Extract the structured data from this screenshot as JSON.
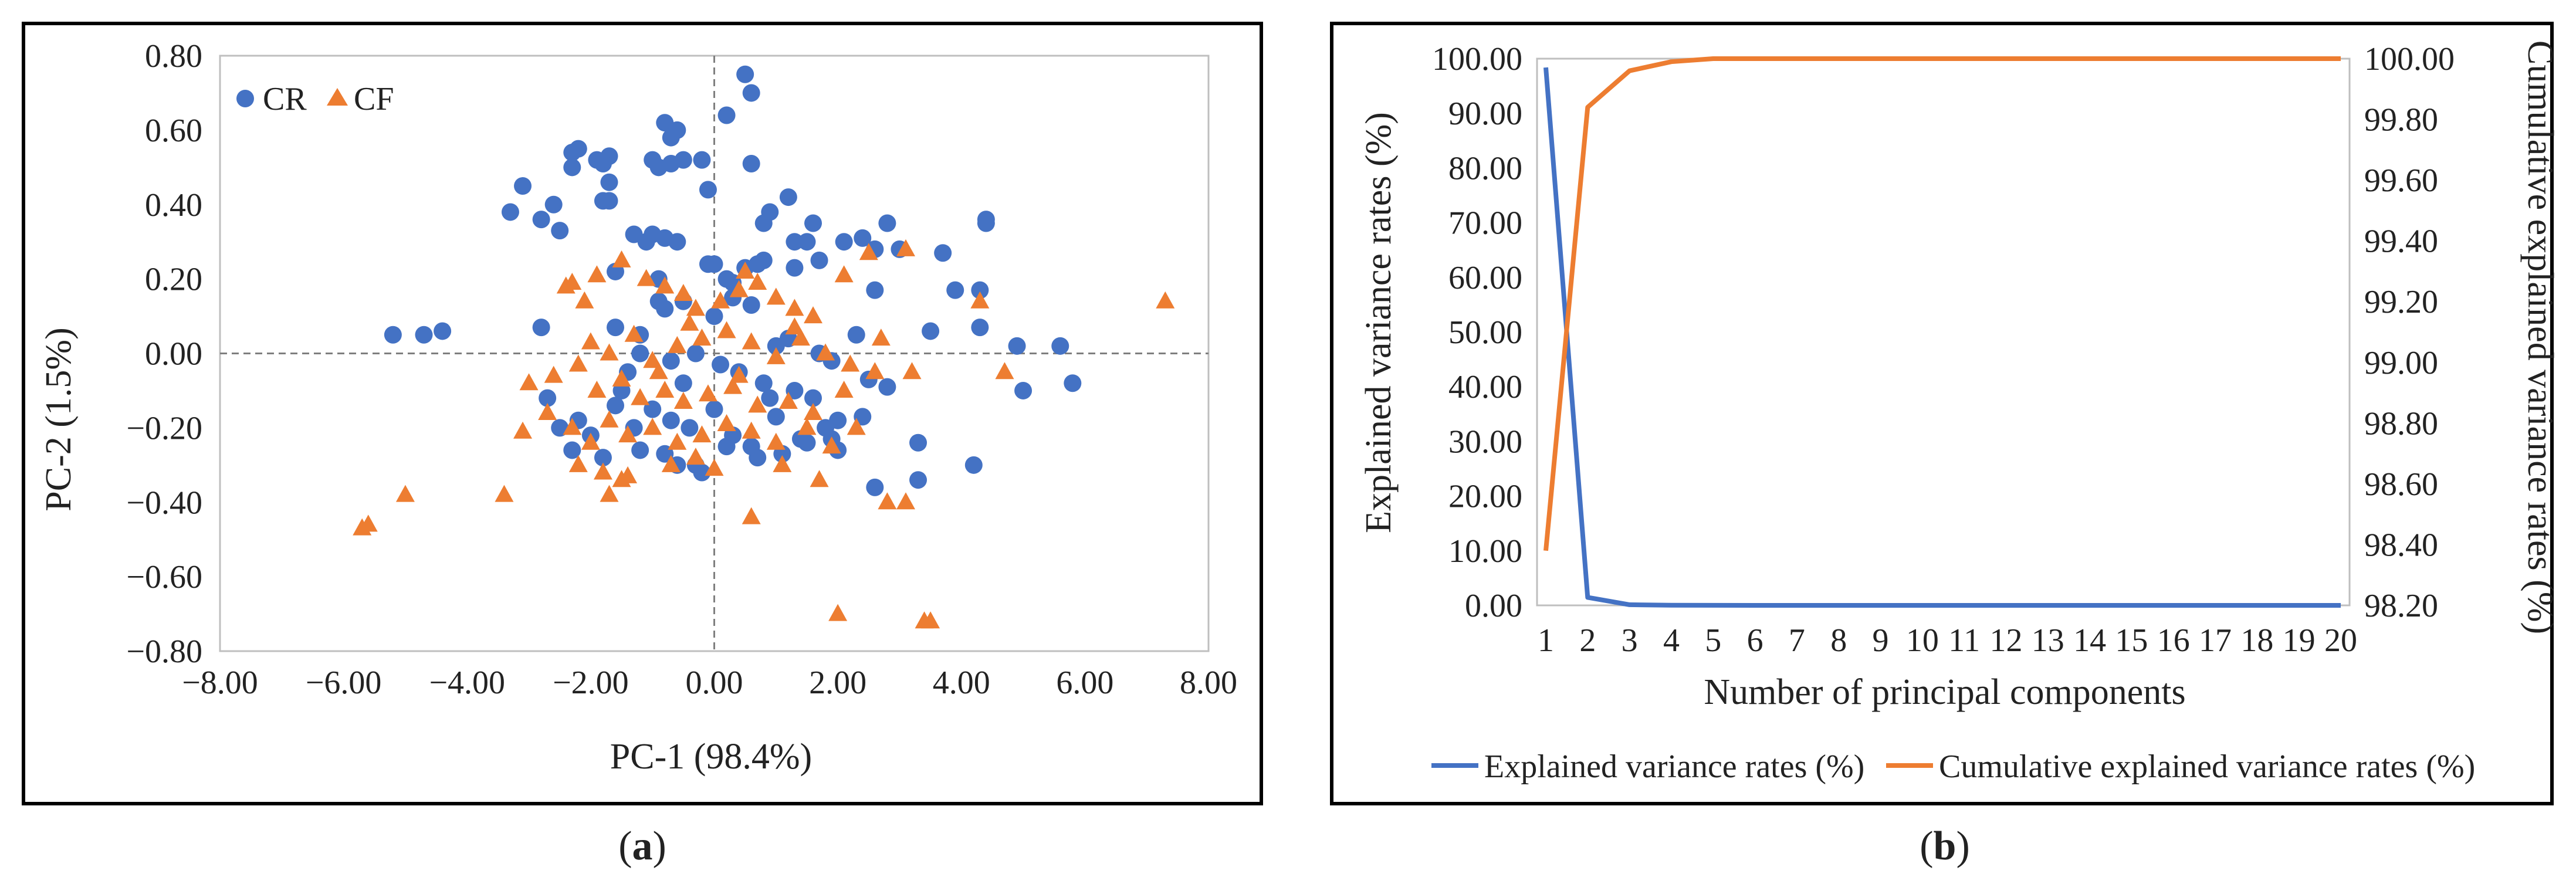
{
  "colors": {
    "cr": "#4472C4",
    "cf": "#ED7D31",
    "explained": "#4472C4",
    "cumulative": "#ED7D31",
    "frame": "#000000",
    "grid": "#d9d9d9",
    "zero_line": "#7f7f7f"
  },
  "panel_a": {
    "sub_label": "a",
    "sub_label_open": "(",
    "sub_label_close": ")"
  },
  "panel_b": {
    "sub_label": "b",
    "sub_label_open": "(",
    "sub_label_close": ")"
  },
  "chart_data": [
    {
      "type": "scatter",
      "panel": "a",
      "title": "",
      "xlabel": "PC-1 (98.4%)",
      "ylabel": "PC-2 (1.5%)",
      "xlim": [
        -8,
        8
      ],
      "ylim": [
        -0.8,
        0.8
      ],
      "xticks": [
        -8,
        -6,
        -4,
        -2,
        0,
        2,
        4,
        6,
        8
      ],
      "yticks": [
        -0.8,
        -0.6,
        -0.4,
        -0.2,
        0,
        0.2,
        0.4,
        0.6,
        0.8
      ],
      "xtick_labels": [
        "−8.00",
        "−6.00",
        "−4.00",
        "−2.00",
        "0.00",
        "2.00",
        "4.00",
        "6.00",
        "8.00"
      ],
      "ytick_labels": [
        "−0.80",
        "−0.60",
        "−0.40",
        "−0.20",
        "0.00",
        "0.20",
        "0.40",
        "0.60",
        "0.80"
      ],
      "legend_position": "top-left",
      "series": [
        {
          "name": "CR",
          "marker": "circle",
          "points": [
            [
              0.5,
              0.75
            ],
            [
              0.6,
              0.7
            ],
            [
              0.2,
              0.64
            ],
            [
              -0.8,
              0.62
            ],
            [
              -0.6,
              0.6
            ],
            [
              -0.7,
              0.58
            ],
            [
              -2.3,
              0.54
            ],
            [
              -2.2,
              0.55
            ],
            [
              -2.3,
              0.5
            ],
            [
              -1.9,
              0.52
            ],
            [
              -1.7,
              0.53
            ],
            [
              -1.0,
              0.52
            ],
            [
              -0.7,
              0.51
            ],
            [
              -0.5,
              0.52
            ],
            [
              -0.2,
              0.52
            ],
            [
              -1.8,
              0.51
            ],
            [
              -1.8,
              0.41
            ],
            [
              -0.9,
              0.5
            ],
            [
              0.6,
              0.51
            ],
            [
              -3.1,
              0.45
            ],
            [
              -3.3,
              0.38
            ],
            [
              -2.6,
              0.4
            ],
            [
              -2.8,
              0.36
            ],
            [
              -1.7,
              0.46
            ],
            [
              -1.7,
              0.41
            ],
            [
              -0.1,
              0.44
            ],
            [
              1.2,
              0.42
            ],
            [
              0.9,
              0.38
            ],
            [
              -2.5,
              0.33
            ],
            [
              -1.3,
              0.32
            ],
            [
              -1.1,
              0.3
            ],
            [
              -1.0,
              0.32
            ],
            [
              -0.8,
              0.31
            ],
            [
              -0.6,
              0.3
            ],
            [
              0.8,
              0.35
            ],
            [
              1.6,
              0.35
            ],
            [
              2.1,
              0.3
            ],
            [
              2.4,
              0.31
            ],
            [
              2.8,
              0.35
            ],
            [
              2.6,
              0.28
            ],
            [
              3.0,
              0.28
            ],
            [
              3.7,
              0.27
            ],
            [
              4.4,
              0.36
            ],
            [
              4.4,
              0.35
            ],
            [
              1.3,
              0.3
            ],
            [
              1.5,
              0.3
            ],
            [
              -0.1,
              0.24
            ],
            [
              0.0,
              0.24
            ],
            [
              0.5,
              0.23
            ],
            [
              0.7,
              0.24
            ],
            [
              0.8,
              0.25
            ],
            [
              -1.6,
              0.22
            ],
            [
              -0.9,
              0.2
            ],
            [
              0.2,
              0.2
            ],
            [
              0.3,
              0.19
            ],
            [
              1.3,
              0.23
            ],
            [
              1.7,
              0.25
            ],
            [
              3.9,
              0.17
            ],
            [
              4.3,
              0.17
            ],
            [
              2.6,
              0.17
            ],
            [
              3.5,
              0.06
            ],
            [
              4.3,
              0.07
            ],
            [
              4.9,
              0.02
            ],
            [
              5.0,
              -0.1
            ],
            [
              5.6,
              0.02
            ],
            [
              5.8,
              -0.08
            ],
            [
              -5.2,
              0.05
            ],
            [
              -4.7,
              0.05
            ],
            [
              -4.4,
              0.06
            ],
            [
              -2.8,
              0.07
            ],
            [
              -1.6,
              0.07
            ],
            [
              -1.2,
              0.05
            ],
            [
              -0.9,
              0.14
            ],
            [
              -0.8,
              0.12
            ],
            [
              -0.5,
              0.14
            ],
            [
              0.0,
              0.1
            ],
            [
              0.3,
              0.15
            ],
            [
              0.6,
              0.13
            ],
            [
              1.0,
              0.02
            ],
            [
              1.2,
              0.04
            ],
            [
              1.7,
              0.0
            ],
            [
              1.9,
              -0.02
            ],
            [
              2.3,
              0.05
            ],
            [
              2.5,
              -0.07
            ],
            [
              2.8,
              -0.09
            ],
            [
              -1.4,
              -0.05
            ],
            [
              -1.2,
              0.0
            ],
            [
              -0.7,
              -0.02
            ],
            [
              -0.3,
              0.0
            ],
            [
              0.1,
              -0.03
            ],
            [
              0.4,
              -0.05
            ],
            [
              0.8,
              -0.08
            ],
            [
              1.3,
              -0.1
            ],
            [
              1.6,
              -0.12
            ],
            [
              -2.7,
              -0.12
            ],
            [
              -2.5,
              -0.2
            ],
            [
              -2.2,
              -0.18
            ],
            [
              -2.0,
              -0.22
            ],
            [
              -1.6,
              -0.14
            ],
            [
              -1.3,
              -0.2
            ],
            [
              -1.0,
              -0.15
            ],
            [
              -0.7,
              -0.18
            ],
            [
              -0.4,
              -0.2
            ],
            [
              0.0,
              -0.15
            ],
            [
              0.3,
              -0.22
            ],
            [
              0.6,
              -0.25
            ],
            [
              1.0,
              -0.17
            ],
            [
              1.4,
              -0.23
            ],
            [
              1.8,
              -0.2
            ],
            [
              2.0,
              -0.18
            ],
            [
              2.4,
              -0.17
            ],
            [
              -2.3,
              -0.26
            ],
            [
              -1.8,
              -0.28
            ],
            [
              -1.2,
              -0.26
            ],
            [
              -0.8,
              -0.27
            ],
            [
              -0.3,
              -0.3
            ],
            [
              0.2,
              -0.25
            ],
            [
              0.7,
              -0.28
            ],
            [
              1.1,
              -0.27
            ],
            [
              1.5,
              -0.24
            ],
            [
              2.0,
              -0.26
            ],
            [
              2.6,
              -0.36
            ],
            [
              3.3,
              -0.34
            ],
            [
              3.3,
              -0.24
            ],
            [
              4.2,
              -0.3
            ],
            [
              -0.6,
              -0.3
            ],
            [
              -0.2,
              -0.32
            ],
            [
              -1.5,
              -0.1
            ],
            [
              -0.5,
              -0.08
            ],
            [
              0.9,
              -0.12
            ],
            [
              1.9,
              -0.23
            ]
          ]
        },
        {
          "name": "CF",
          "marker": "triangle",
          "points": [
            [
              -2.4,
              0.18
            ],
            [
              -2.3,
              0.19
            ],
            [
              -2.1,
              0.14
            ],
            [
              -1.9,
              0.21
            ],
            [
              -1.5,
              0.25
            ],
            [
              -1.1,
              0.2
            ],
            [
              -0.8,
              0.18
            ],
            [
              -0.5,
              0.16
            ],
            [
              -0.3,
              0.12
            ],
            [
              0.1,
              0.14
            ],
            [
              0.4,
              0.17
            ],
            [
              0.5,
              0.22
            ],
            [
              0.7,
              0.19
            ],
            [
              1.0,
              0.15
            ],
            [
              1.3,
              0.12
            ],
            [
              1.6,
              0.1
            ],
            [
              2.1,
              0.21
            ],
            [
              2.5,
              0.27
            ],
            [
              3.1,
              0.28
            ],
            [
              4.3,
              0.14
            ],
            [
              7.3,
              0.14
            ],
            [
              4.7,
              -0.05
            ],
            [
              -1.7,
              0.0
            ],
            [
              -1.3,
              0.05
            ],
            [
              -1.0,
              -0.02
            ],
            [
              -0.6,
              0.02
            ],
            [
              -0.2,
              0.04
            ],
            [
              0.2,
              0.06
            ],
            [
              0.6,
              0.03
            ],
            [
              1.0,
              -0.01
            ],
            [
              1.4,
              0.04
            ],
            [
              1.8,
              0.0
            ],
            [
              2.2,
              -0.03
            ],
            [
              3.2,
              -0.05
            ],
            [
              -3.0,
              -0.08
            ],
            [
              -2.6,
              -0.06
            ],
            [
              -2.2,
              -0.03
            ],
            [
              -1.9,
              -0.1
            ],
            [
              -1.5,
              -0.07
            ],
            [
              -1.2,
              -0.12
            ],
            [
              -0.8,
              -0.1
            ],
            [
              -0.5,
              -0.13
            ],
            [
              -0.1,
              -0.11
            ],
            [
              0.3,
              -0.09
            ],
            [
              0.7,
              -0.14
            ],
            [
              1.2,
              -0.13
            ],
            [
              1.6,
              -0.16
            ],
            [
              2.1,
              -0.1
            ],
            [
              2.6,
              -0.05
            ],
            [
              -3.1,
              -0.21
            ],
            [
              -2.7,
              -0.16
            ],
            [
              -2.3,
              -0.2
            ],
            [
              -2.0,
              -0.24
            ],
            [
              -1.7,
              -0.18
            ],
            [
              -1.4,
              -0.22
            ],
            [
              -1.0,
              -0.2
            ],
            [
              -0.6,
              -0.24
            ],
            [
              -0.2,
              -0.22
            ],
            [
              0.2,
              -0.19
            ],
            [
              0.6,
              -0.21
            ],
            [
              1.0,
              -0.24
            ],
            [
              1.5,
              -0.2
            ],
            [
              1.9,
              -0.25
            ],
            [
              2.3,
              -0.2
            ],
            [
              -2.2,
              -0.3
            ],
            [
              -1.8,
              -0.32
            ],
            [
              -1.5,
              -0.34
            ],
            [
              -1.4,
              -0.33
            ],
            [
              -1.7,
              -0.38
            ],
            [
              -0.7,
              -0.3
            ],
            [
              -0.3,
              -0.28
            ],
            [
              0.0,
              -0.31
            ],
            [
              1.1,
              -0.3
            ],
            [
              1.7,
              -0.34
            ],
            [
              2.8,
              -0.4
            ],
            [
              3.1,
              -0.4
            ],
            [
              0.6,
              -0.44
            ],
            [
              -3.4,
              -0.38
            ],
            [
              -5.0,
              -0.38
            ],
            [
              -5.6,
              -0.46
            ],
            [
              -5.7,
              -0.47
            ],
            [
              2.0,
              -0.7
            ],
            [
              3.4,
              -0.72
            ],
            [
              3.5,
              -0.72
            ],
            [
              -0.9,
              -0.05
            ],
            [
              0.4,
              -0.06
            ],
            [
              1.3,
              0.07
            ],
            [
              -2.0,
              0.03
            ],
            [
              2.7,
              0.04
            ],
            [
              -0.4,
              0.08
            ]
          ]
        }
      ]
    },
    {
      "type": "line",
      "panel": "b",
      "title": "",
      "xlabel": "Number of principal components",
      "ylabel": "Explained variance rates (%)",
      "y2label": "Cumulative explained variance rates (%)",
      "x": [
        1,
        2,
        3,
        4,
        5,
        6,
        7,
        8,
        9,
        10,
        11,
        12,
        13,
        14,
        15,
        16,
        17,
        18,
        19,
        20
      ],
      "x_tick_labels": [
        "1",
        "2",
        "3",
        "4",
        "5",
        "6",
        "7",
        "8",
        "9",
        "10",
        "11",
        "12",
        "13",
        "14",
        "15",
        "16",
        "17",
        "18",
        "19",
        "20"
      ],
      "ylim": [
        0,
        100
      ],
      "yticks": [
        0,
        10,
        20,
        30,
        40,
        50,
        60,
        70,
        80,
        90,
        100
      ],
      "ytick_labels": [
        "0.00",
        "10.00",
        "20.00",
        "30.00",
        "40.00",
        "50.00",
        "60.00",
        "70.00",
        "80.00",
        "90.00",
        "100.00"
      ],
      "y2lim": [
        98.2,
        100
      ],
      "y2ticks": [
        98.2,
        98.4,
        98.6,
        98.8,
        99.0,
        99.2,
        99.4,
        99.6,
        99.8,
        100.0
      ],
      "y2tick_labels": [
        "98.20",
        "98.40",
        "98.60",
        "98.80",
        "99.00",
        "99.20",
        "99.40",
        "99.60",
        "99.80",
        "100.00"
      ],
      "legend_position": "bottom",
      "series": [
        {
          "name": "Explained variance rates (%)",
          "axis": "left",
          "values": [
            98.38,
            1.46,
            0.12,
            0.03,
            0.01,
            0.0,
            0.0,
            0.0,
            0.0,
            0.0,
            0.0,
            0.0,
            0.0,
            0.0,
            0.0,
            0.0,
            0.0,
            0.0,
            0.0,
            0.0
          ]
        },
        {
          "name": "Cumulative explained variance rates (%)",
          "axis": "right",
          "values": [
            98.38,
            99.84,
            99.96,
            99.99,
            100.0,
            100.0,
            100.0,
            100.0,
            100.0,
            100.0,
            100.0,
            100.0,
            100.0,
            100.0,
            100.0,
            100.0,
            100.0,
            100.0,
            100.0,
            100.0
          ]
        }
      ]
    }
  ]
}
